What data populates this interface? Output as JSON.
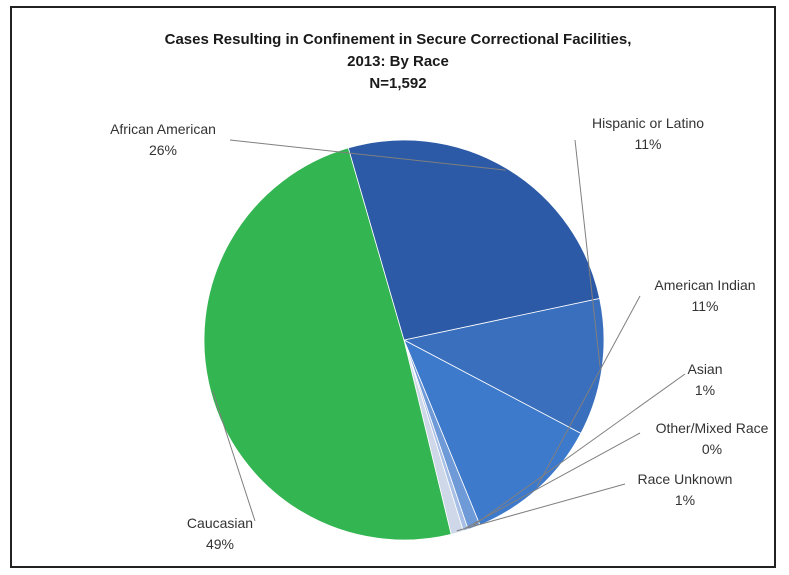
{
  "chart_data": {
    "type": "pie",
    "title_lines": [
      "Cases Resulting in Confinement in Secure Correctional Facilities,",
      "2013: By Race",
      "N=1,592"
    ],
    "slices": [
      {
        "name": "Hispanic or Latino",
        "value": 11,
        "label": "11%",
        "color": "#3a6fbd"
      },
      {
        "name": "American Indian",
        "value": 11,
        "label": "11%",
        "color": "#3e7acc"
      },
      {
        "name": "Asian",
        "value": 1,
        "label": "1%",
        "color": "#6f9ad8"
      },
      {
        "name": "Other/Mixed Race",
        "value": 0.4,
        "label": "0%",
        "color": "#a8c0e6"
      },
      {
        "name": "Race Unknown",
        "value": 1,
        "label": "1%",
        "color": "#cfd8e8"
      },
      {
        "name": "Caucasian",
        "value": 49,
        "label": "49%",
        "color": "#33b552"
      },
      {
        "name": "African American",
        "value": 26,
        "label": "26%",
        "color": "#2c5aa6"
      }
    ],
    "start_slice": "Hispanic or Latino",
    "direction": "clockwise"
  }
}
